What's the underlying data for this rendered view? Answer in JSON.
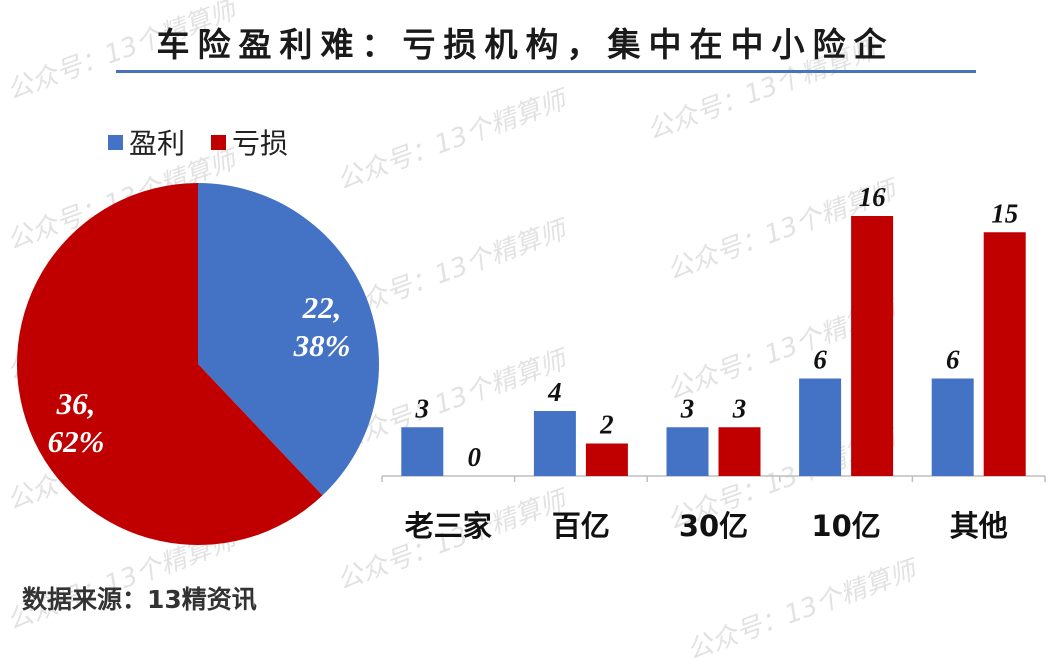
{
  "title": "车险盈利难：亏损机构，集中在中小险企",
  "source": "数据来源：13精资讯",
  "watermark": "公众号：13个精算师",
  "colors": {
    "profit": "#4472C4",
    "loss": "#C00000",
    "rule": "#4a74b8"
  },
  "chart_data": [
    {
      "type": "pie",
      "legend": [
        "盈利",
        "亏损"
      ],
      "slices": [
        {
          "name": "盈利",
          "value": 22,
          "percent": "38%",
          "label": "22,\n38%"
        },
        {
          "name": "亏损",
          "value": 36,
          "percent": "62%",
          "label": "36,\n62%"
        }
      ]
    },
    {
      "type": "bar",
      "categories": [
        "老三家",
        "百亿",
        "30亿",
        "10亿",
        "其他"
      ],
      "series": [
        {
          "name": "盈利",
          "values": [
            3,
            4,
            3,
            6,
            6
          ]
        },
        {
          "name": "亏损",
          "values": [
            0,
            2,
            3,
            16,
            15
          ]
        }
      ]
    }
  ]
}
